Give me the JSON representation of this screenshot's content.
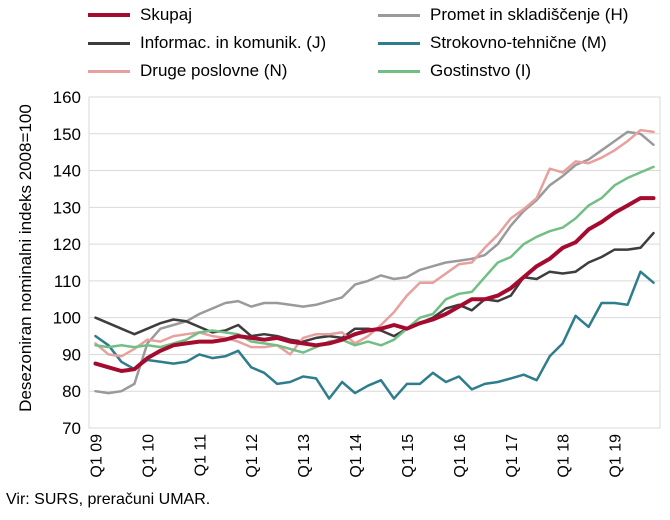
{
  "chart_data": {
    "type": "line",
    "ylabel": "Desezoniran nominalni indeks 2008=100",
    "ylim": [
      70,
      160
    ],
    "yticks": [
      70,
      80,
      90,
      100,
      110,
      120,
      130,
      140,
      150,
      160
    ],
    "xtick_labels": [
      "Q1 09",
      "Q1 10",
      "Q1 11",
      "Q1 12",
      "Q1 13",
      "Q1 14",
      "Q1 15",
      "Q1 16",
      "Q1 17",
      "Q1 18",
      "Q1 19"
    ],
    "x": [
      "Q1 09",
      "Q2 09",
      "Q3 09",
      "Q4 09",
      "Q1 10",
      "Q2 10",
      "Q3 10",
      "Q4 10",
      "Q1 11",
      "Q2 11",
      "Q3 11",
      "Q4 11",
      "Q1 12",
      "Q2 12",
      "Q3 12",
      "Q4 12",
      "Q1 13",
      "Q2 13",
      "Q3 13",
      "Q4 13",
      "Q1 14",
      "Q2 14",
      "Q3 14",
      "Q4 14",
      "Q1 15",
      "Q2 15",
      "Q3 15",
      "Q4 15",
      "Q1 16",
      "Q2 16",
      "Q3 16",
      "Q4 16",
      "Q1 17",
      "Q2 17",
      "Q3 17",
      "Q4 17",
      "Q1 18",
      "Q2 18",
      "Q3 18",
      "Q4 18",
      "Q1 19",
      "Q2 19",
      "Q3 19",
      "Q4 19"
    ],
    "grid": true,
    "legend_position": "top",
    "series": [
      {
        "name": "Skupaj",
        "color": "#a50b2f",
        "width": 4,
        "values": [
          87.5,
          86.5,
          85.5,
          86,
          89,
          91,
          92.5,
          93,
          93.5,
          93.5,
          94,
          95,
          94.5,
          94,
          94.5,
          93.5,
          93,
          92.5,
          93,
          94,
          95.5,
          96.5,
          97,
          98,
          97,
          98.5,
          99.5,
          101,
          103,
          105,
          105,
          106,
          108,
          111,
          114,
          116,
          119,
          120.5,
          124,
          126,
          128.5,
          130.5,
          132.5,
          132.5
        ]
      },
      {
        "name": "Promet in skladiščenje (H)",
        "color": "#9a9a9a",
        "width": 2.5,
        "values": [
          80,
          79.5,
          80,
          82,
          93,
          97,
          98,
          99,
          101,
          102.5,
          104,
          104.5,
          103,
          104,
          104,
          103.5,
          103,
          103.5,
          104.5,
          105.5,
          109,
          110,
          111.5,
          110.5,
          111,
          113,
          114,
          115,
          115.5,
          116,
          117,
          120,
          125,
          129,
          132,
          136,
          138.5,
          141.5,
          143,
          145.5,
          148,
          150.5,
          150,
          147
        ]
      },
      {
        "name": "Informac. in komunik. (J)",
        "color": "#3d3d3d",
        "width": 2.5,
        "values": [
          100,
          98.5,
          97,
          95.5,
          97,
          98.5,
          99.5,
          99,
          97.5,
          96,
          96.5,
          98,
          95,
          95.5,
          95,
          94,
          93.5,
          94.5,
          95,
          94.5,
          97,
          97,
          96.5,
          95,
          97,
          98.5,
          100,
          102.5,
          103.5,
          102,
          105,
          104.5,
          106,
          111,
          110.5,
          112.5,
          112,
          112.5,
          115,
          116.5,
          118.5,
          118.5,
          119,
          123
        ]
      },
      {
        "name": "Strokovno-tehnične (M)",
        "color": "#2e7d8c",
        "width": 2.5,
        "values": [
          95,
          92.5,
          88,
          86,
          88.5,
          88,
          87.5,
          88,
          90,
          89,
          89.5,
          91,
          86.5,
          85,
          82,
          82.5,
          84,
          83.5,
          78,
          82.5,
          79.5,
          81.5,
          83,
          78,
          82,
          82,
          85,
          82.5,
          84,
          80.5,
          82,
          82.5,
          83.5,
          84.5,
          83,
          89.5,
          93,
          100.5,
          97.5,
          104,
          104,
          103.5,
          112.5,
          109.5
        ]
      },
      {
        "name": "Druge poslovne (N)",
        "color": "#e8a09e",
        "width": 2.5,
        "values": [
          93,
          90,
          89.5,
          91.5,
          94,
          93.5,
          95,
          95.5,
          96,
          95,
          94.5,
          93.5,
          92,
          92,
          92.5,
          90,
          94.5,
          95.5,
          95.5,
          96,
          93,
          95,
          98,
          101.5,
          106,
          109.5,
          109.5,
          112,
          114.5,
          115,
          119,
          122.5,
          127,
          129.5,
          132.5,
          140.5,
          139.5,
          142.5,
          142,
          143.5,
          145.5,
          148,
          151,
          150.5
        ]
      },
      {
        "name": "Gostinstvo (I)",
        "color": "#72bf85",
        "width": 2.5,
        "values": [
          92.5,
          92,
          92.5,
          92,
          92.5,
          92,
          93,
          94,
          96,
          96.5,
          96,
          95.5,
          93.5,
          93,
          92.5,
          91.5,
          90.5,
          92,
          93.5,
          94,
          92.5,
          93.5,
          92.5,
          94,
          97,
          100,
          101,
          105,
          106.5,
          107,
          111,
          115,
          116.5,
          120,
          122,
          123.5,
          124.5,
          127,
          130.5,
          132.5,
          136,
          138,
          139.5,
          141
        ]
      }
    ]
  },
  "source": "Vir: SURS, preračuni UMAR."
}
